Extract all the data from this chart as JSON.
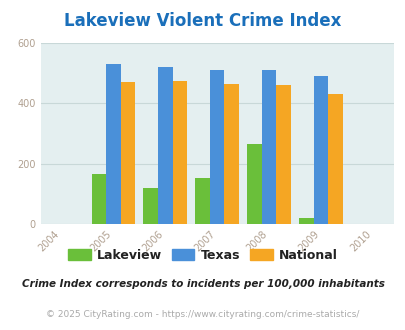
{
  "title": "Lakeview Violent Crime Index",
  "years": [
    2005,
    2006,
    2007,
    2008,
    2009
  ],
  "x_ticks": [
    2004,
    2005,
    2006,
    2007,
    2008,
    2009,
    2010
  ],
  "lakeview": [
    165,
    120,
    155,
    265,
    20
  ],
  "texas": [
    530,
    520,
    510,
    510,
    490
  ],
  "national": [
    470,
    475,
    465,
    460,
    430
  ],
  "lakeview_color": "#6abf3a",
  "texas_color": "#4a90d9",
  "national_color": "#f5a623",
  "bg_color": "#e4eff0",
  "ylim": [
    0,
    600
  ],
  "yticks": [
    0,
    200,
    400,
    600
  ],
  "bar_width": 0.28,
  "legend_labels": [
    "Lakeview",
    "Texas",
    "National"
  ],
  "footnote1": "Crime Index corresponds to incidents per 100,000 inhabitants",
  "footnote2": "© 2025 CityRating.com - https://www.cityrating.com/crime-statistics/",
  "title_color": "#1a6fba",
  "footnote1_color": "#222222",
  "footnote2_color": "#aaaaaa",
  "tick_color": "#b0a090",
  "grid_color": "#c8d8d8"
}
